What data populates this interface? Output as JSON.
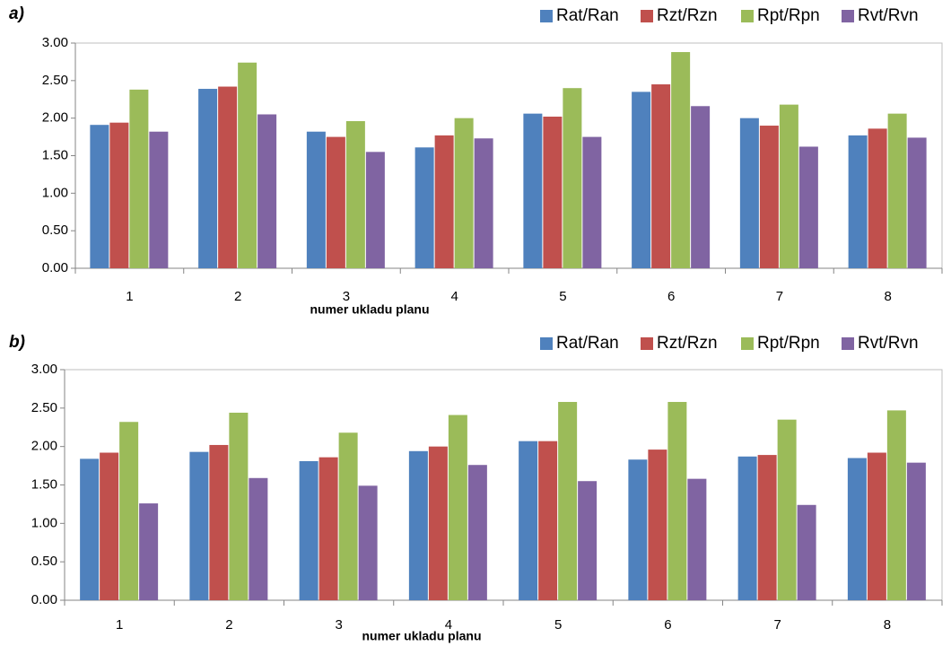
{
  "chart_data": [
    {
      "type": "bar",
      "title": "a)",
      "x_label": "numer ukladu planu",
      "categories": [
        "1",
        "2",
        "3",
        "4",
        "5",
        "6",
        "7",
        "8"
      ],
      "series": [
        {
          "name": "Rat/Ran",
          "color": "#4f81bd",
          "values": [
            1.91,
            2.39,
            1.82,
            1.61,
            2.06,
            2.35,
            2.0,
            1.77
          ]
        },
        {
          "name": "Rzt/Rzn",
          "color": "#c0504d",
          "values": [
            1.94,
            2.42,
            1.75,
            1.77,
            2.02,
            2.45,
            1.9,
            1.86
          ]
        },
        {
          "name": "Rpt/Rpn",
          "color": "#9bbb59",
          "values": [
            2.38,
            2.74,
            1.96,
            2.0,
            2.4,
            2.88,
            2.18,
            2.06
          ]
        },
        {
          "name": "Rvt/Rvn",
          "color": "#8064a2",
          "values": [
            1.82,
            2.05,
            1.55,
            1.73,
            1.75,
            2.16,
            1.62,
            1.74
          ]
        }
      ],
      "ylim": [
        0,
        3
      ],
      "yticks": [
        {
          "value": 0,
          "label": "0.00"
        },
        {
          "value": 0.5,
          "label": "0.50"
        },
        {
          "value": 1,
          "label": "1.00"
        },
        {
          "value": 1.5,
          "label": "1.50"
        },
        {
          "value": 2,
          "label": "2.00"
        },
        {
          "value": 2.5,
          "label": "2.50"
        },
        {
          "value": 3,
          "label": "3.00"
        }
      ],
      "grid": false,
      "legend": "top-right"
    },
    {
      "type": "bar",
      "title": "b)",
      "x_label": "numer ukladu planu",
      "categories": [
        "1",
        "2",
        "3",
        "4",
        "5",
        "6",
        "7",
        "8"
      ],
      "series": [
        {
          "name": "Rat/Ran",
          "color": "#4f81bd",
          "values": [
            1.84,
            1.93,
            1.81,
            1.94,
            2.07,
            1.83,
            1.87,
            1.85
          ]
        },
        {
          "name": "Rzt/Rzn",
          "color": "#c0504d",
          "values": [
            1.92,
            2.02,
            1.86,
            2.0,
            2.07,
            1.96,
            1.89,
            1.92
          ]
        },
        {
          "name": "Rpt/Rpn",
          "color": "#9bbb59",
          "values": [
            2.32,
            2.44,
            2.18,
            2.41,
            2.58,
            2.58,
            2.35,
            2.47
          ]
        },
        {
          "name": "Rvt/Rvn",
          "color": "#8064a2",
          "values": [
            1.26,
            1.59,
            1.49,
            1.76,
            1.55,
            1.58,
            1.24,
            1.79
          ]
        }
      ],
      "ylim": [
        0,
        3
      ],
      "yticks": [
        {
          "value": 0,
          "label": "0.00"
        },
        {
          "value": 0.5,
          "label": "0.50"
        },
        {
          "value": 1,
          "label": "1.00"
        },
        {
          "value": 1.5,
          "label": "1.50"
        },
        {
          "value": 2,
          "label": "2.00"
        },
        {
          "value": 2.5,
          "label": "2.50"
        },
        {
          "value": 3,
          "label": "3.00"
        }
      ],
      "grid": false,
      "legend": "top-right"
    }
  ]
}
